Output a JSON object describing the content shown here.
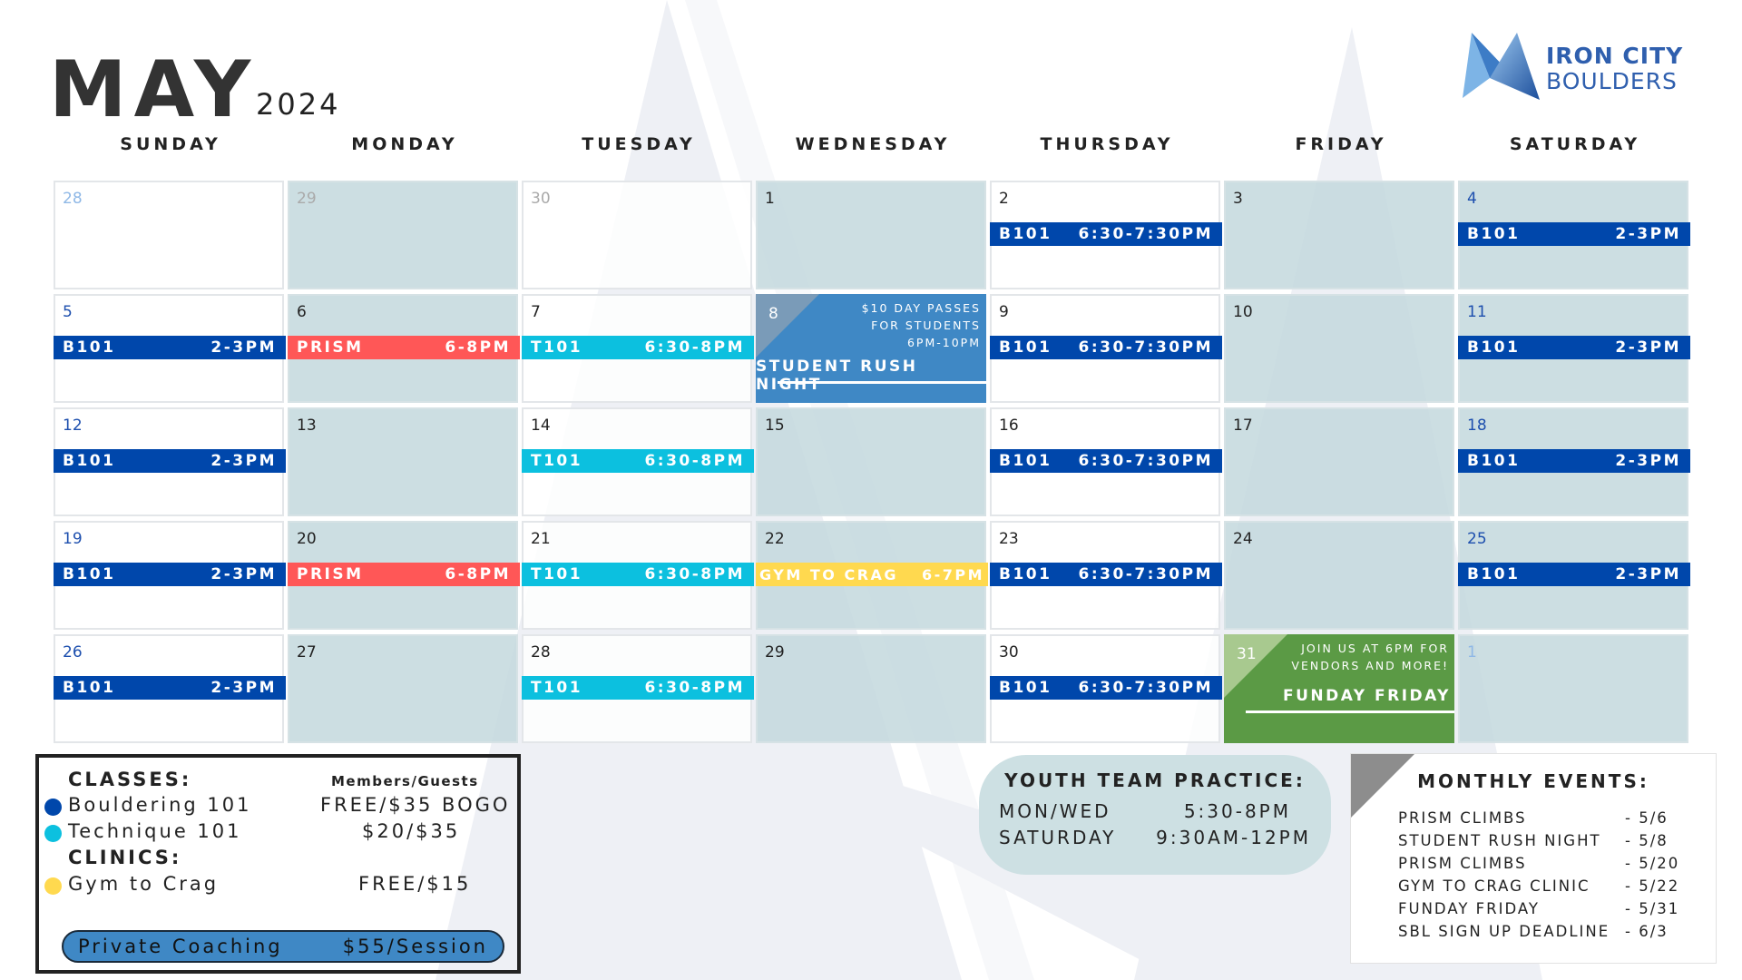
{
  "header": {
    "month": "MAY",
    "year": "2024",
    "logo_line1": "IRON CITY",
    "logo_line2": "BOULDERS"
  },
  "weekdays": [
    "SUNDAY",
    "MONDAY",
    "TUESDAY",
    "WEDNESDAY",
    "THURSDAY",
    "FRIDAY",
    "SATURDAY"
  ],
  "colors": {
    "B101": "#0047ab",
    "PRISM": "#ff5757",
    "T101": "#0cc0df",
    "GYM": "#ffd94f",
    "rush": "#3f88c5",
    "funday": "#5b9a45",
    "title": "#333333",
    "logo": "#2f5fae",
    "cell_gray": "#c9dde1"
  },
  "weeks": [
    [
      {
        "day": "28",
        "muted": true
      },
      {
        "day": "29",
        "muted": true
      },
      {
        "day": "30",
        "muted": true
      },
      {
        "day": "1"
      },
      {
        "day": "2",
        "event": {
          "type": "B101",
          "label": "B101",
          "time": "6:30-7:30PM"
        }
      },
      {
        "day": "3"
      },
      {
        "day": "4",
        "event": {
          "type": "B101",
          "label": "B101",
          "time": "2-3PM"
        }
      }
    ],
    [
      {
        "day": "5",
        "event": {
          "type": "B101",
          "label": "B101",
          "time": "2-3PM"
        }
      },
      {
        "day": "6",
        "event": {
          "type": "PRISM",
          "label": "PRISM",
          "time": "6-8PM"
        }
      },
      {
        "day": "7",
        "event": {
          "type": "T101",
          "label": "T101",
          "time": "6:30-8PM"
        }
      },
      {
        "day": "8",
        "special": {
          "type": "rush",
          "lines": [
            "$10 DAY PASSES",
            "FOR STUDENTS",
            "6PM-10PM"
          ],
          "title": "STUDENT RUSH NIGHT"
        }
      },
      {
        "day": "9",
        "event": {
          "type": "B101",
          "label": "B101",
          "time": "6:30-7:30PM"
        }
      },
      {
        "day": "10"
      },
      {
        "day": "11",
        "event": {
          "type": "B101",
          "label": "B101",
          "time": "2-3PM"
        }
      }
    ],
    [
      {
        "day": "12",
        "event": {
          "type": "B101",
          "label": "B101",
          "time": "2-3PM"
        }
      },
      {
        "day": "13"
      },
      {
        "day": "14",
        "event": {
          "type": "T101",
          "label": "T101",
          "time": "6:30-8PM"
        }
      },
      {
        "day": "15"
      },
      {
        "day": "16",
        "event": {
          "type": "B101",
          "label": "B101",
          "time": "6:30-7:30PM"
        }
      },
      {
        "day": "17"
      },
      {
        "day": "18",
        "event": {
          "type": "B101",
          "label": "B101",
          "time": "2-3PM"
        }
      }
    ],
    [
      {
        "day": "19",
        "event": {
          "type": "B101",
          "label": "B101",
          "time": "2-3PM"
        }
      },
      {
        "day": "20",
        "event": {
          "type": "PRISM",
          "label": "PRISM",
          "time": "6-8PM"
        }
      },
      {
        "day": "21",
        "event": {
          "type": "T101",
          "label": "T101",
          "time": "6:30-8PM"
        }
      },
      {
        "day": "22",
        "event": {
          "type": "GYM",
          "label": "GYM TO CRAG",
          "time": "6-7PM"
        }
      },
      {
        "day": "23",
        "event": {
          "type": "B101",
          "label": "B101",
          "time": "6:30-7:30PM"
        }
      },
      {
        "day": "24"
      },
      {
        "day": "25",
        "event": {
          "type": "B101",
          "label": "B101",
          "time": "2-3PM"
        }
      }
    ],
    [
      {
        "day": "26",
        "event": {
          "type": "B101",
          "label": "B101",
          "time": "2-3PM"
        }
      },
      {
        "day": "27"
      },
      {
        "day": "28",
        "event": {
          "type": "T101",
          "label": "T101",
          "time": "6:30-8PM"
        }
      },
      {
        "day": "29"
      },
      {
        "day": "30",
        "event": {
          "type": "B101",
          "label": "B101",
          "time": "6:30-7:30PM"
        }
      },
      {
        "day": "31",
        "special": {
          "type": "funday",
          "lines": [
            "JOIN US AT 6PM FOR",
            "VENDORS AND MORE!"
          ],
          "title": "FUNDAY FRIDAY"
        }
      },
      {
        "day": "1",
        "muted": true
      }
    ]
  ],
  "legend": {
    "classes_heading": "CLASSES:",
    "price_heading": "Members/Guests",
    "items": [
      {
        "name": "Bouldering 101",
        "price": "FREE/$35 BOGO",
        "color": "#0047ab"
      },
      {
        "name": "Technique 101",
        "price": "$20/$35",
        "color": "#0cc0df"
      }
    ],
    "clinics_heading": "CLINICS:",
    "clinic": {
      "name": "Gym to Crag",
      "price": "FREE/$15",
      "color": "#ffd94f"
    },
    "coaching_label": "Private Coaching",
    "coaching_price": "$55/Session"
  },
  "youth": {
    "title": "YOUTH TEAM PRACTICE:",
    "rows": [
      {
        "days": "MON/WED",
        "time": "5:30-8PM"
      },
      {
        "days": "SATURDAY",
        "time": "9:30AM-12PM"
      }
    ]
  },
  "monthly": {
    "title": "MONTHLY EVENTS:",
    "items": [
      {
        "name": "PRISM CLIMBS",
        "date": "- 5/6"
      },
      {
        "name": "STUDENT RUSH NIGHT",
        "date": "- 5/8"
      },
      {
        "name": "PRISM CLIMBS",
        "date": "- 5/20"
      },
      {
        "name": "GYM TO CRAG CLINIC",
        "date": "- 5/22"
      },
      {
        "name": "FUNDAY FRIDAY",
        "date": "- 5/31"
      },
      {
        "name": "SBL SIGN UP DEADLINE",
        "date": "- 6/3"
      }
    ]
  }
}
